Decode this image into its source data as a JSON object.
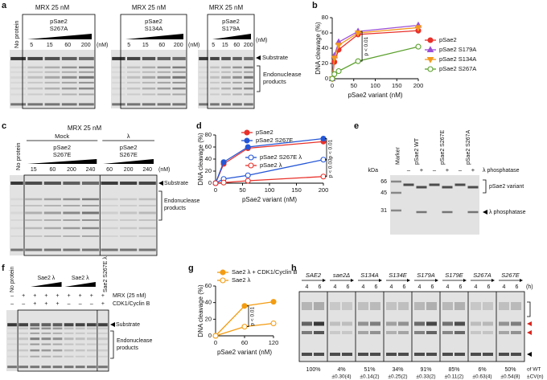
{
  "panel_labels": [
    "a",
    "b",
    "c",
    "d",
    "e",
    "f",
    "g",
    "h"
  ],
  "panel_a": {
    "gels": [
      {
        "header": "MRX 25 nM",
        "protein": [
          "pSae2",
          "S267A"
        ],
        "lanes": [
          "5",
          "15",
          "60",
          "200"
        ],
        "unit": "(nM)"
      },
      {
        "header": "MRX 25 nM",
        "protein": [
          "pSae2",
          "S134A"
        ],
        "lanes": [
          "5",
          "15",
          "60",
          "200"
        ],
        "unit": "(nM)"
      },
      {
        "header": "MRX 25 nM",
        "protein": [
          "pSae2",
          "S179A"
        ],
        "lanes": [
          "5",
          "15",
          "60",
          "200"
        ],
        "unit": "(nM)"
      }
    ],
    "no_protein": "No protein",
    "substrate": "Substrate",
    "products": [
      "Endonuclease",
      "products"
    ]
  },
  "panel_c": {
    "header": "MRX 25 nM",
    "no_protein": "No protein",
    "groups": [
      {
        "label": "Mock",
        "protein": [
          "pSae2",
          "S267E"
        ]
      },
      {
        "label": "λ",
        "protein": [
          "pSae2",
          "S267E"
        ]
      }
    ],
    "lanes": [
      "15",
      "60",
      "200",
      "240",
      "60",
      "200",
      "240"
    ],
    "unit": "(nM)",
    "substrate": "Substrate",
    "products": [
      "Endonuclease",
      "products"
    ]
  },
  "panel_e": {
    "unit": "kDa",
    "lanes": [
      "Marker",
      "pSae2 WT",
      "pSae2 S267E",
      "pSae2 S267A"
    ],
    "treatment": [
      "–",
      "+",
      "–",
      "+",
      "–",
      "+"
    ],
    "treatment_label": "λ phosphatase",
    "markers": [
      "66",
      "45",
      "31"
    ],
    "bands": [
      "pSae2 variant",
      "λ phosphatase"
    ]
  },
  "panel_f": {
    "no_protein": "No protein",
    "groups": [
      "Sae2 λ",
      "Sae2 λ"
    ],
    "extra_lane": "Sae2 S267E λ",
    "rows": [
      {
        "label": "MRX (25 nM)",
        "symbols": [
          "–",
          "+",
          "+",
          "+",
          "+",
          "+",
          "+",
          "+",
          "+"
        ]
      },
      {
        "label": "CDK1/Cyclin B",
        "symbols": [
          "–",
          "–",
          "+",
          "+",
          "+",
          "–",
          "–",
          "–",
          "+"
        ]
      }
    ],
    "substrate": "Substrate",
    "products": [
      "Endonuclease",
      "products"
    ]
  },
  "panel_h": {
    "strains": [
      "SAE2",
      "sae2Δ",
      "S134A",
      "S134E",
      "S179A",
      "S179E",
      "S267A",
      "S267E"
    ],
    "times": [
      "4",
      "6"
    ],
    "time_unit": "(h)",
    "quantification": [
      {
        "percent": "100%"
      },
      {
        "percent": "4%",
        "cv": "±0.30(4)"
      },
      {
        "percent": "51%",
        "cv": "±0.14(2)"
      },
      {
        "percent": "34%",
        "cv": "±0.25(2)"
      },
      {
        "percent": "91%",
        "cv": "±0.33(2)"
      },
      {
        "percent": "85%",
        "cv": "±0.11(2)"
      },
      {
        "percent": "6%",
        "cv": "±0.63(4)"
      },
      {
        "percent": "50%",
        "cv": "±0.54(8)"
      }
    ],
    "footer": [
      "of WT",
      "±CV(n)"
    ]
  },
  "chart_data": [
    {
      "type": "line",
      "x_label": "pSae2 variant (nM)",
      "y_label": "DNA cleavage (%)",
      "x": [
        0,
        5,
        15,
        60,
        200
      ],
      "xlim": [
        0,
        200
      ],
      "xticks": [
        0,
        50,
        100,
        150,
        200
      ],
      "ylim": [
        0,
        80
      ],
      "yticks": [
        0,
        20,
        40,
        60,
        80
      ],
      "legend": "right",
      "annotations": [
        "p < 0.01"
      ],
      "series": [
        {
          "name": "pSae2",
          "color": "#e8312a",
          "marker": "circle",
          "filled": true,
          "values": [
            0,
            22,
            38,
            58,
            63
          ]
        },
        {
          "name": "pSae2 S179A",
          "color": "#9b4fd6",
          "marker": "triangle",
          "filled": true,
          "values": [
            0,
            30,
            48,
            62,
            70
          ]
        },
        {
          "name": "pSae2 S134A",
          "color": "#f39a1e",
          "marker": "triangle-down",
          "filled": true,
          "values": [
            0,
            27,
            44,
            60,
            67
          ]
        },
        {
          "name": "pSae2 S267A",
          "color": "#5aa02c",
          "marker": "circle",
          "filled": false,
          "values": [
            0,
            6,
            10,
            23,
            42
          ]
        }
      ]
    },
    {
      "type": "line",
      "x_label": "pSae2 variant (nM)",
      "y_label": "DNA cleavage (%)",
      "x": [
        0,
        15,
        60,
        200
      ],
      "xlim": [
        0,
        200
      ],
      "xticks": [
        0,
        50,
        100,
        150,
        200
      ],
      "ylim": [
        0,
        80
      ],
      "yticks": [
        0,
        20,
        40,
        60,
        80
      ],
      "legend": "inside",
      "annotations": [
        "p < 0.01",
        "p < 0.03"
      ],
      "series": [
        {
          "name": "pSae2",
          "color": "#e8312a",
          "marker": "circle",
          "filled": true,
          "values": [
            0,
            32,
            58,
            69
          ]
        },
        {
          "name": "pSae2 S267E",
          "color": "#2456d6",
          "marker": "circle",
          "filled": true,
          "values": [
            0,
            35,
            60,
            74
          ]
        },
        {
          "name": "pSae2 S267E λ",
          "color": "#2456d6",
          "marker": "circle",
          "filled": false,
          "values": [
            0,
            7,
            13,
            39
          ]
        },
        {
          "name": "pSae2 λ",
          "color": "#e8312a",
          "marker": "circle",
          "filled": false,
          "values": [
            0,
            1,
            4,
            11
          ]
        }
      ]
    },
    {
      "type": "line",
      "x_label": "pSae2 variant (nM)",
      "y_label": "DNA cleavage (%)",
      "x": [
        0,
        60,
        120
      ],
      "xlim": [
        0,
        120
      ],
      "xticks": [
        0,
        60,
        120
      ],
      "ylim": [
        0,
        60
      ],
      "yticks": [
        0,
        20,
        40,
        60
      ],
      "legend": "top-left",
      "annotations": [
        "p < 0.01"
      ],
      "series": [
        {
          "name": "Sae2 λ + CDK1/Cyclin B",
          "color": "#f39c12",
          "marker": "circle",
          "filled": true,
          "values": [
            0,
            36,
            41
          ]
        },
        {
          "name": "Sae2 λ",
          "color": "#f39c12",
          "marker": "circle",
          "filled": false,
          "values": [
            0,
            11,
            15
          ]
        }
      ]
    }
  ]
}
